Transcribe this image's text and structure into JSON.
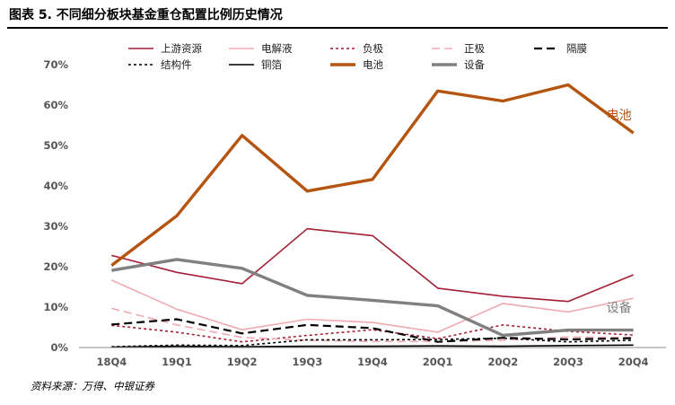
{
  "header": {
    "title": "图表 5. 不同细分板块基金重仓配置比例历史情况"
  },
  "footer": {
    "source": "资料来源：万得、中银证券"
  },
  "chart_data": {
    "type": "line",
    "title": "不同细分板块基金重仓配置比例历史情况",
    "xlabel": "",
    "ylabel": "",
    "ylim": [
      0,
      70
    ],
    "yticks": [
      "0%",
      "10%",
      "20%",
      "30%",
      "40%",
      "50%",
      "60%",
      "70%"
    ],
    "categories": [
      "18Q4",
      "19Q1",
      "19Q2",
      "19Q3",
      "19Q4",
      "20Q1",
      "20Q2",
      "20Q3",
      "20Q4"
    ],
    "series": [
      {
        "name": "上游资源",
        "color": "#A31F34",
        "dash": "solid",
        "width": "thin",
        "values": [
          22.8,
          18.6,
          15.8,
          29.4,
          27.7,
          14.7,
          12.7,
          11.4,
          18.0
        ]
      },
      {
        "name": "电解液",
        "color": "#F0AAB0",
        "dash": "solid",
        "width": "thin",
        "values": [
          16.7,
          9.5,
          4.4,
          7.0,
          6.2,
          3.8,
          10.9,
          8.8,
          12.2
        ]
      },
      {
        "name": "负极",
        "color": "#A31F34",
        "dash": "dotted",
        "width": "thin",
        "values": [
          5.5,
          3.8,
          1.4,
          3.0,
          4.4,
          2.2,
          5.6,
          4.0,
          3.1
        ]
      },
      {
        "name": "正极",
        "color": "#F0AAB0",
        "dash": "dashed",
        "width": "thin",
        "values": [
          9.7,
          5.6,
          2.5,
          1.8,
          1.5,
          1.5,
          1.8,
          2.6,
          2.5
        ]
      },
      {
        "name": "隔膜",
        "color": "#000000",
        "dash": "dashed",
        "width": "medium",
        "values": [
          5.7,
          7.0,
          3.5,
          5.6,
          4.8,
          1.4,
          2.4,
          2.0,
          2.3
        ]
      },
      {
        "name": "结构件",
        "color": "#000000",
        "dash": "dotted",
        "width": "thin",
        "values": [
          0.2,
          0.6,
          0.5,
          1.9,
          1.9,
          2.0,
          2.3,
          1.4,
          1.8
        ]
      },
      {
        "name": "铜箔",
        "color": "#000000",
        "dash": "solid",
        "width": "thin",
        "values": [
          0.1,
          0.3,
          0.2,
          0.3,
          0.3,
          0.4,
          0.3,
          0.5,
          0.6
        ]
      },
      {
        "name": "电池",
        "color": "#B5540F",
        "dash": "solid",
        "width": "thick",
        "values": [
          20.3,
          32.6,
          52.5,
          38.7,
          41.6,
          63.5,
          61.0,
          65.0,
          53.1
        ]
      },
      {
        "name": "设备",
        "color": "#808080",
        "dash": "solid",
        "width": "thick",
        "values": [
          19.1,
          21.8,
          19.6,
          12.9,
          11.7,
          10.3,
          3.0,
          4.3,
          4.3
        ]
      }
    ],
    "annotations": [
      {
        "text": "电池",
        "series": "电池",
        "color": "#B5540F"
      },
      {
        "text": "设备",
        "series": "设备",
        "color": "#808080"
      }
    ],
    "legend_position": "top"
  }
}
